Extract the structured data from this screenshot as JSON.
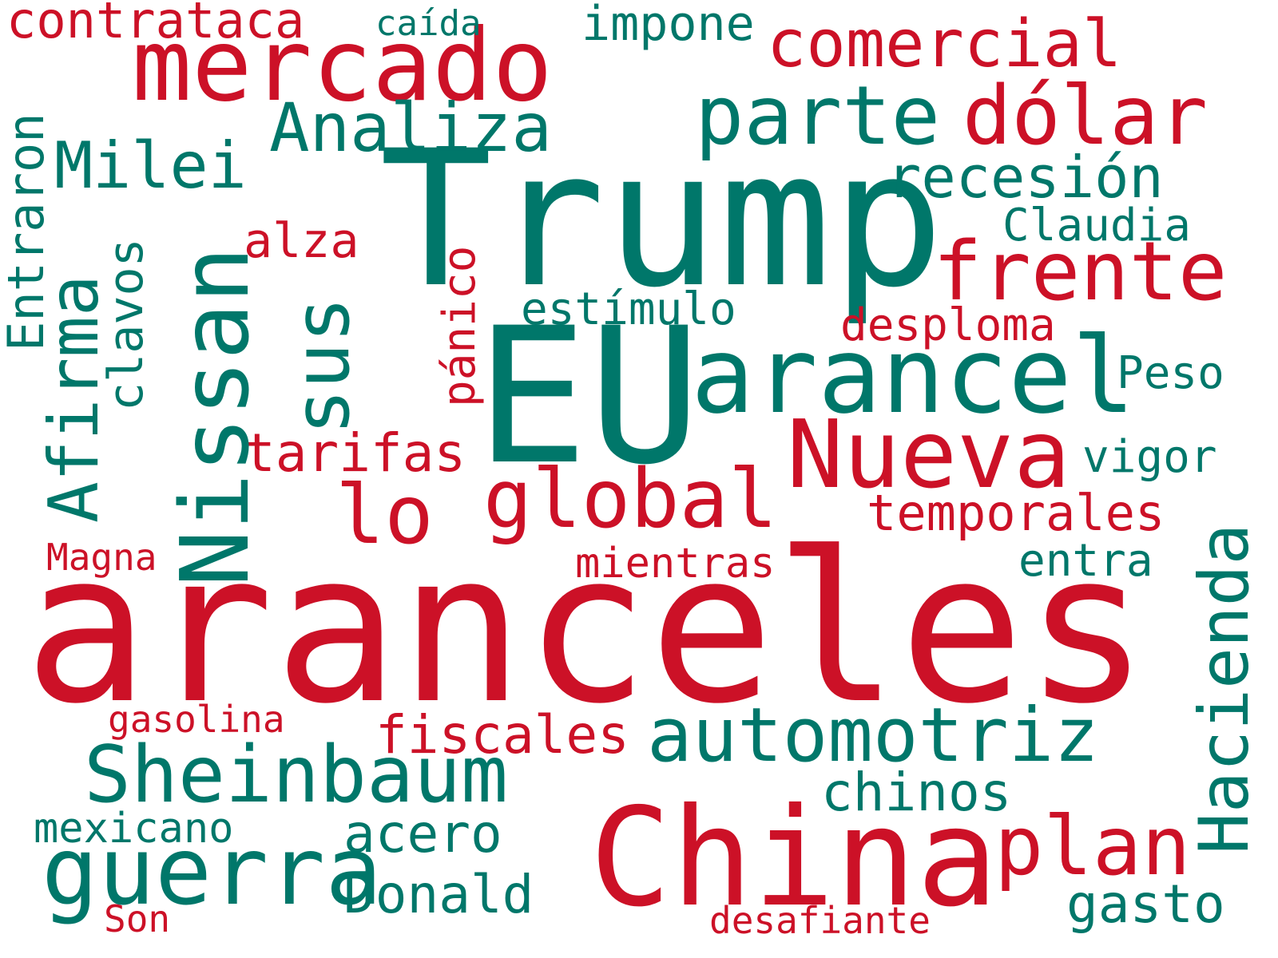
{
  "colors": {
    "red": "#cc1127",
    "teal": "#00776a"
  },
  "words": [
    {
      "text": "aranceles",
      "color": "red"
    },
    {
      "text": "Trump",
      "color": "teal"
    },
    {
      "text": "EU",
      "color": "teal"
    },
    {
      "text": "China",
      "color": "red"
    },
    {
      "text": "arancel",
      "color": "teal"
    },
    {
      "text": "mercado",
      "color": "red"
    },
    {
      "text": "Nissan",
      "color": "teal"
    },
    {
      "text": "Nueva",
      "color": "red"
    },
    {
      "text": "automotriz",
      "color": "teal"
    },
    {
      "text": "Sheinbaum",
      "color": "teal"
    },
    {
      "text": "guerra",
      "color": "teal"
    },
    {
      "text": "parte",
      "color": "teal"
    },
    {
      "text": "dólar",
      "color": "red"
    },
    {
      "text": "frente",
      "color": "red"
    },
    {
      "text": "global",
      "color": "red"
    },
    {
      "text": "plan",
      "color": "red"
    },
    {
      "text": "lo",
      "color": "red"
    },
    {
      "text": "sus",
      "color": "teal"
    },
    {
      "text": "Milei",
      "color": "teal"
    },
    {
      "text": "Analiza",
      "color": "teal"
    },
    {
      "text": "comercial",
      "color": "red"
    },
    {
      "text": "recesión",
      "color": "teal"
    },
    {
      "text": "Afirma",
      "color": "teal"
    },
    {
      "text": "Hacienda",
      "color": "teal"
    },
    {
      "text": "Donald",
      "color": "teal"
    },
    {
      "text": "acero",
      "color": "teal"
    },
    {
      "text": "fiscales",
      "color": "red"
    },
    {
      "text": "chinos",
      "color": "teal"
    },
    {
      "text": "temporales",
      "color": "red"
    },
    {
      "text": "tarifas",
      "color": "red"
    },
    {
      "text": "contrataca",
      "color": "red"
    },
    {
      "text": "impone",
      "color": "teal"
    },
    {
      "text": "Entraron",
      "color": "teal"
    },
    {
      "text": "clavos",
      "color": "teal"
    },
    {
      "text": "pánico",
      "color": "red"
    },
    {
      "text": "gasto",
      "color": "teal"
    },
    {
      "text": "Claudia",
      "color": "teal"
    },
    {
      "text": "alza",
      "color": "red"
    },
    {
      "text": "estímulo",
      "color": "teal"
    },
    {
      "text": "desploma",
      "color": "red"
    },
    {
      "text": "Peso",
      "color": "teal"
    },
    {
      "text": "vigor",
      "color": "teal"
    },
    {
      "text": "entra",
      "color": "teal"
    },
    {
      "text": "mientras",
      "color": "red"
    },
    {
      "text": "mexicano",
      "color": "teal"
    },
    {
      "text": "caída",
      "color": "teal"
    },
    {
      "text": "Magna",
      "color": "red"
    },
    {
      "text": "gasolina",
      "color": "red"
    },
    {
      "text": "desafiante",
      "color": "red"
    },
    {
      "text": "Son",
      "color": "red"
    }
  ]
}
